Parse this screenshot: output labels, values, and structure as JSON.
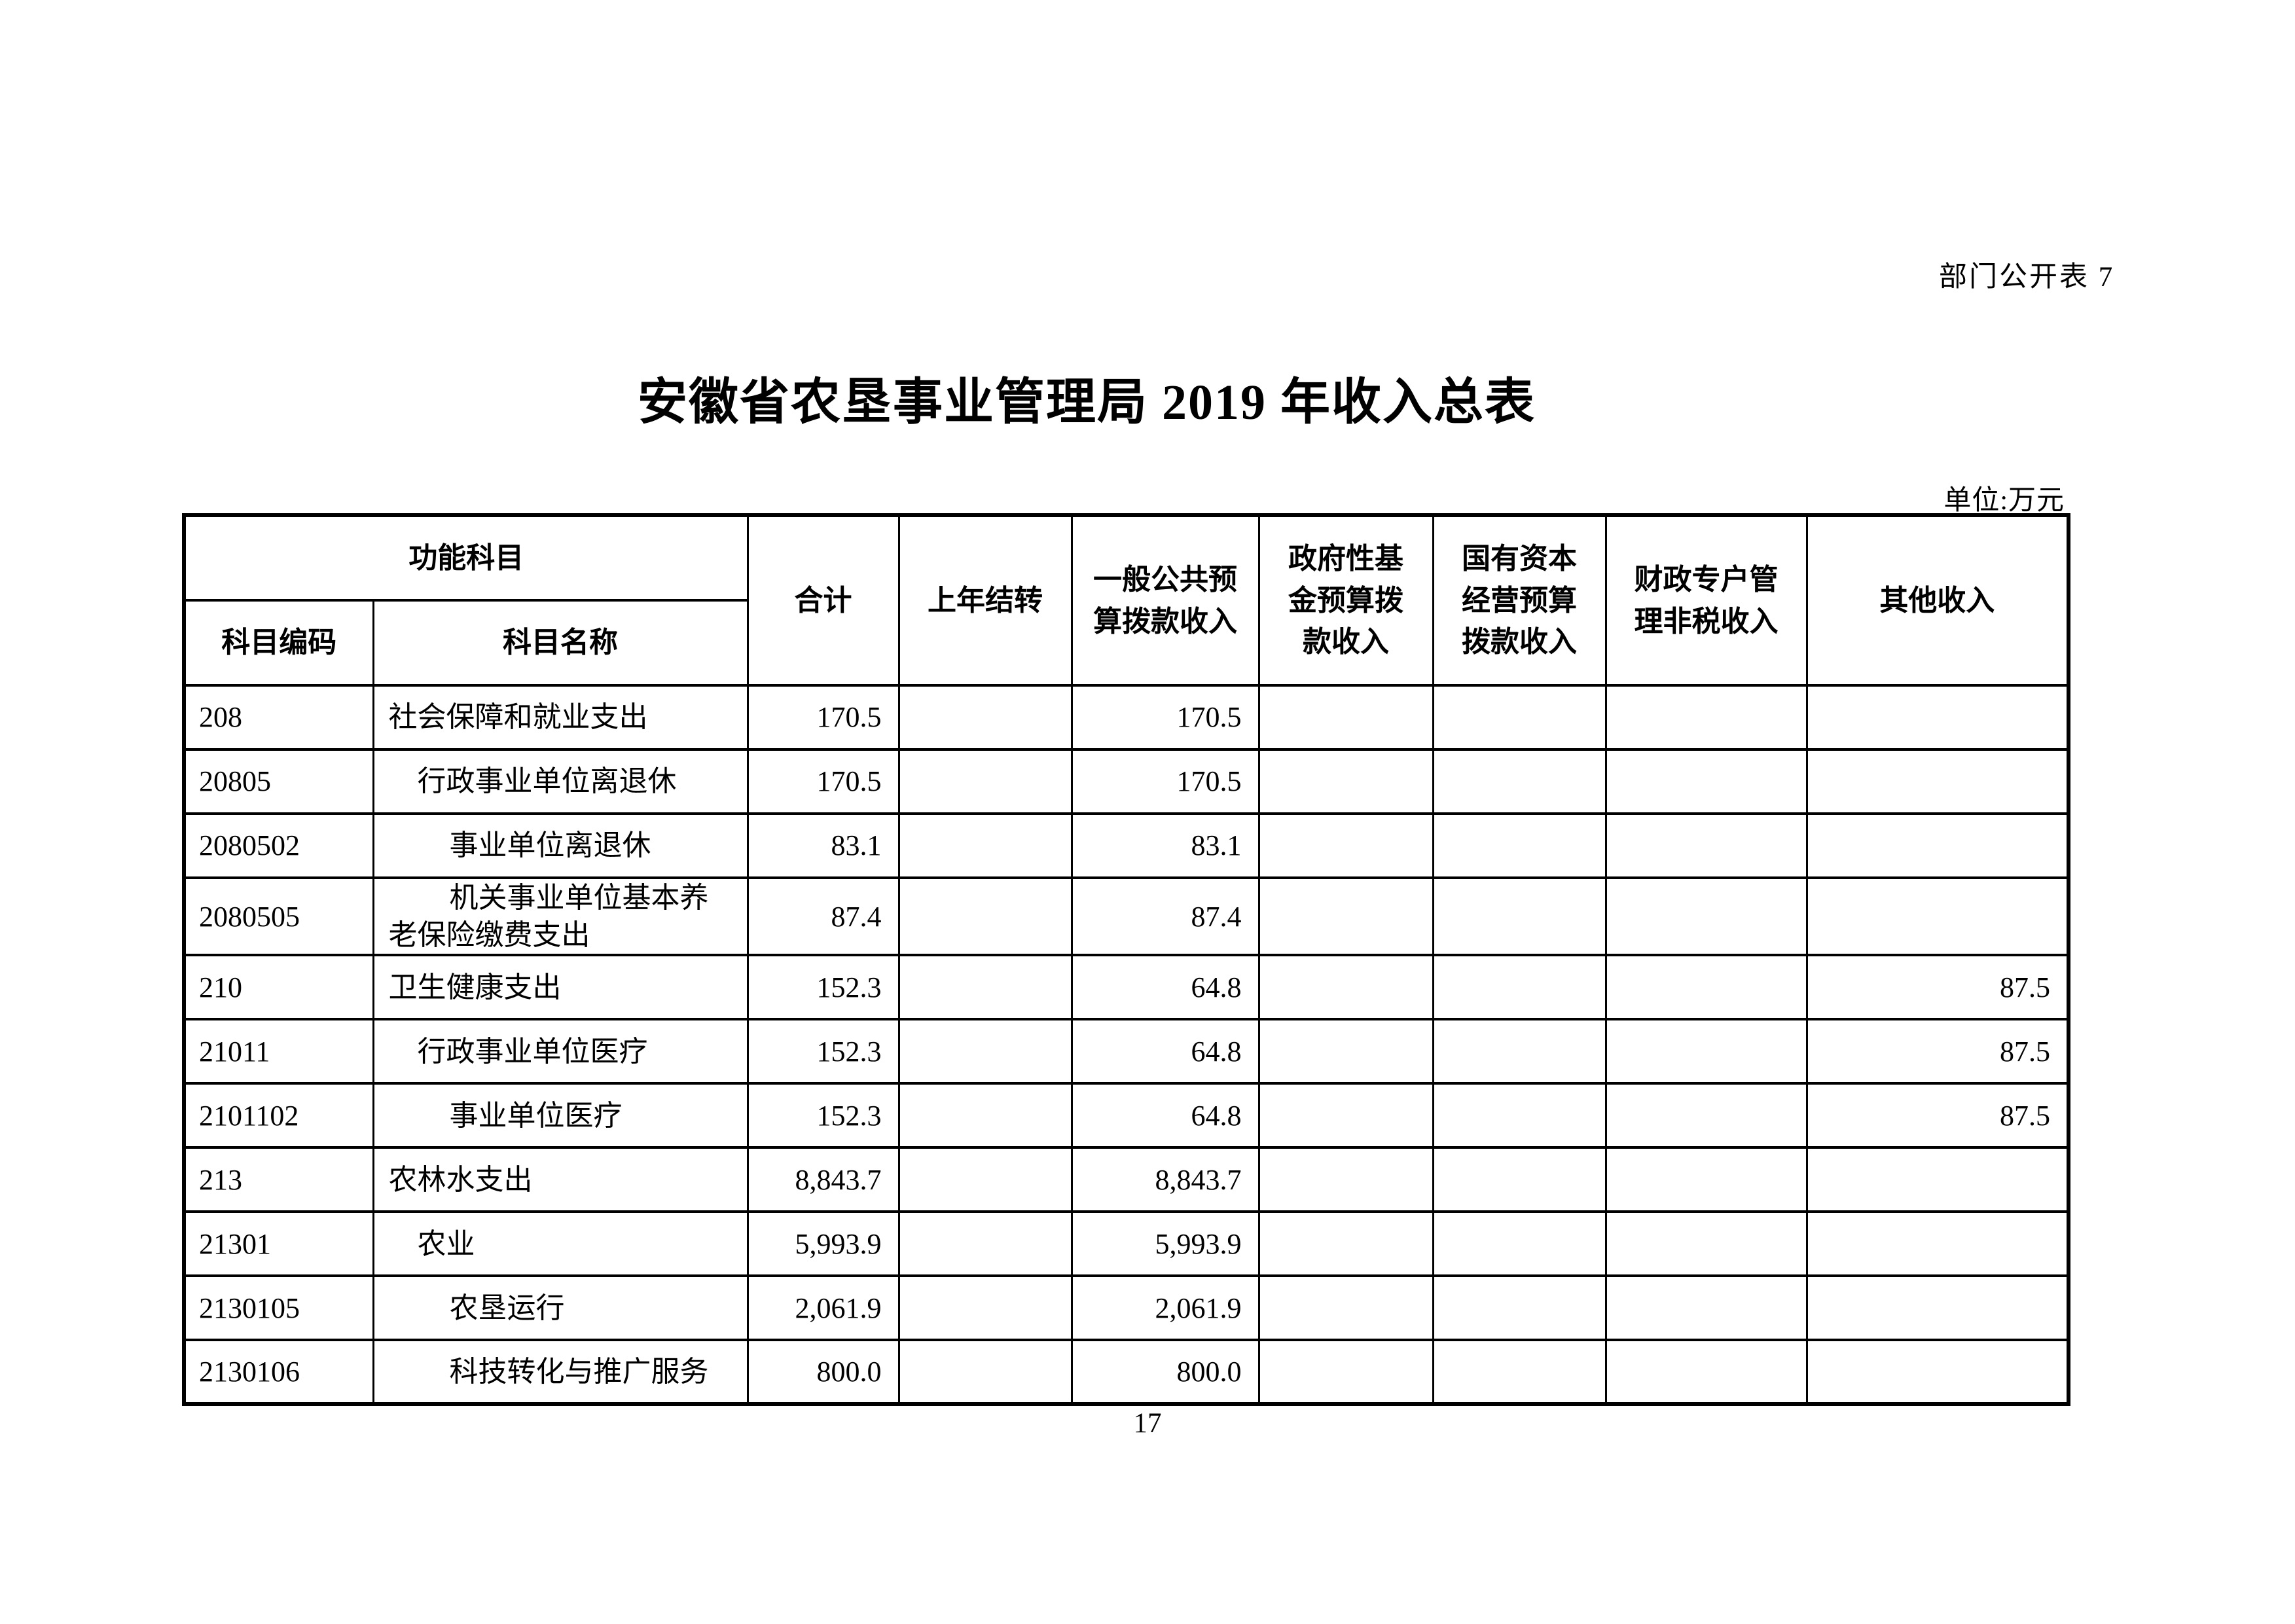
{
  "page": {
    "doc_label": "部门公开表 7",
    "title": "安徽省农垦事业管理局 2019 年收入总表",
    "unit_note": "单位:万元",
    "page_number": "17"
  },
  "table": {
    "header": {
      "function_subject": "功能科目",
      "subject_code": "科目编码",
      "subject_name": "科目名称",
      "total": "合计",
      "carryover": "上年结转",
      "general_budget": "一般公共预算拨款收入",
      "gov_fund": "政府性基金预算拨款收入",
      "state_capital": "国有资本经营预算拨款收入",
      "fiscal_account": "财政专户管理非税收入",
      "other_income": "其他收入"
    },
    "rows": [
      {
        "code": "208",
        "name": "社会保障和就业支出",
        "level": 1,
        "total": "170.5",
        "carryover": "",
        "general": "170.5",
        "gov_fund": "",
        "state_capital": "",
        "fiscal": "",
        "other": ""
      },
      {
        "code": "20805",
        "name": "行政事业单位离退休",
        "level": 2,
        "total": "170.5",
        "carryover": "",
        "general": "170.5",
        "gov_fund": "",
        "state_capital": "",
        "fiscal": "",
        "other": ""
      },
      {
        "code": "2080502",
        "name": "事业单位离退休",
        "level": 3,
        "total": "83.1",
        "carryover": "",
        "general": "83.1",
        "gov_fund": "",
        "state_capital": "",
        "fiscal": "",
        "other": ""
      },
      {
        "code": "2080505",
        "name": "机关事业单位基本养老保险缴费支出",
        "level": 3,
        "total": "87.4",
        "carryover": "",
        "general": "87.4",
        "gov_fund": "",
        "state_capital": "",
        "fiscal": "",
        "other": ""
      },
      {
        "code": "210",
        "name": "卫生健康支出",
        "level": 1,
        "total": "152.3",
        "carryover": "",
        "general": "64.8",
        "gov_fund": "",
        "state_capital": "",
        "fiscal": "",
        "other": "87.5"
      },
      {
        "code": "21011",
        "name": "行政事业单位医疗",
        "level": 2,
        "total": "152.3",
        "carryover": "",
        "general": "64.8",
        "gov_fund": "",
        "state_capital": "",
        "fiscal": "",
        "other": "87.5"
      },
      {
        "code": "2101102",
        "name": "事业单位医疗",
        "level": 3,
        "total": "152.3",
        "carryover": "",
        "general": "64.8",
        "gov_fund": "",
        "state_capital": "",
        "fiscal": "",
        "other": "87.5"
      },
      {
        "code": "213",
        "name": "农林水支出",
        "level": 1,
        "total": "8,843.7",
        "carryover": "",
        "general": "8,843.7",
        "gov_fund": "",
        "state_capital": "",
        "fiscal": "",
        "other": ""
      },
      {
        "code": "21301",
        "name": "农业",
        "level": 2,
        "total": "5,993.9",
        "carryover": "",
        "general": "5,993.9",
        "gov_fund": "",
        "state_capital": "",
        "fiscal": "",
        "other": ""
      },
      {
        "code": "2130105",
        "name": "农垦运行",
        "level": 3,
        "total": "2,061.9",
        "carryover": "",
        "general": "2,061.9",
        "gov_fund": "",
        "state_capital": "",
        "fiscal": "",
        "other": ""
      },
      {
        "code": "2130106",
        "name": "科技转化与推广服务",
        "level": 3,
        "total": "800.0",
        "carryover": "",
        "general": "800.0",
        "gov_fund": "",
        "state_capital": "",
        "fiscal": "",
        "other": ""
      }
    ]
  }
}
